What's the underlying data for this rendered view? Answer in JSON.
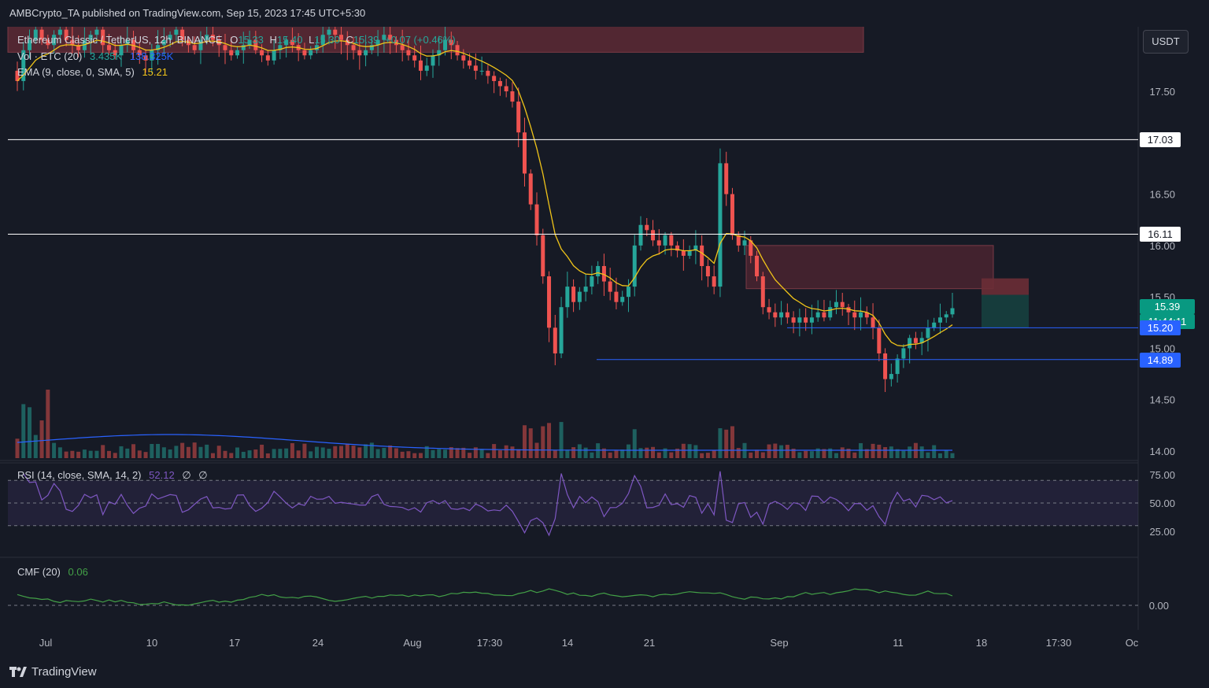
{
  "header": {
    "publisher_line": "AMBCrypto_TA published on TradingView.com, Sep 15, 2023 17:45 UTC+5:30"
  },
  "legend": {
    "symbol": "Ethereum Classic / TetherUS, 12h, BINANCE",
    "o_label": "O",
    "o_value": "15.33",
    "h_label": "H",
    "h_value": "15.40",
    "l_label": "L",
    "l_value": "15.30",
    "c_label": "C",
    "c_value": "15.39",
    "change": "+0.07 (+0.46%)",
    "vol_label": "Vol · ETC (20)",
    "vol_value": "3.435K",
    "vol_ma_value": "138.325K",
    "ema_label": "EMA (9, close, 0, SMA, 5)",
    "ema_value": "15.21",
    "rsi_label": "RSI (14, close, SMA, 14, 2)",
    "rsi_value": "52.12",
    "rsi_extra1": "∅",
    "rsi_extra2": "∅",
    "cmf_label": "CMF (20)",
    "cmf_value": "0.06"
  },
  "currency_button": "USDT",
  "price_axis": {
    "ticks": [
      "17.50",
      "16.50",
      "16.00",
      "15.50",
      "15.00",
      "14.50",
      "14.00"
    ],
    "labels": [
      {
        "text": "17.03",
        "style": "white"
      },
      {
        "text": "16.11",
        "style": "white"
      },
      {
        "text": "15.39",
        "style": "green"
      },
      {
        "text": "11:44:11",
        "style": "green"
      },
      {
        "text": "15.20",
        "style": "blue"
      },
      {
        "text": "14.89",
        "style": "blue"
      }
    ]
  },
  "rsi_axis": [
    "75.00",
    "50.00",
    "25.00"
  ],
  "cmf_axis": [
    "0.00"
  ],
  "time_axis": [
    "Jul",
    "10",
    "17",
    "24",
    "Aug",
    "17:30",
    "14",
    "21",
    "Sep",
    "11",
    "18",
    "17:30",
    "Oc"
  ],
  "footer": {
    "brand": "TradingView"
  },
  "colors": {
    "background": "#161a25",
    "up": "#26a69a",
    "down": "#ef5350",
    "ema": "#f0c419",
    "rsi": "#7e57c2",
    "cmf": "#43a047",
    "level_line": "#ffffff",
    "support_line": "#2962ff",
    "supply_zone": "#5d2a35"
  },
  "chart_data": {
    "type": "candlestick",
    "symbol": "Ethereum Classic / TetherUS",
    "timeframe": "12h",
    "exchange": "BINANCE",
    "ylim": [
      13.95,
      18.3
    ],
    "last": {
      "open": 15.33,
      "high": 15.4,
      "low": 15.3,
      "close": 15.39
    },
    "ema": 15.21,
    "horizontal_levels": [
      17.03,
      16.11,
      15.2,
      14.89
    ],
    "zones": [
      {
        "kind": "supply",
        "from": "Jun 29",
        "to": "Aug 24",
        "low": 17.9,
        "high": 18.2
      },
      {
        "kind": "supply",
        "from": "Aug 28",
        "to": "Sep 18",
        "low": 15.58,
        "high": 16.0
      },
      {
        "kind": "position-short",
        "from": "Sep 18",
        "to": "Sep 22",
        "low": 15.2,
        "high": 15.68,
        "entry": 15.52
      }
    ],
    "closes": [
      17.6,
      17.9,
      18.0,
      18.1,
      18.0,
      17.95,
      18.05,
      18.1,
      18.0,
      17.95,
      17.9,
      18.0,
      18.05,
      18.1,
      17.95,
      17.9,
      17.85,
      17.95,
      18.0,
      17.9,
      17.85,
      17.8,
      17.9,
      17.95,
      18.0,
      18.05,
      18.1,
      18.0,
      17.95,
      17.9,
      18.0,
      18.05,
      18.0,
      17.95,
      17.9,
      17.85,
      17.9,
      17.95,
      18.0,
      17.9,
      17.85,
      17.8,
      17.9,
      17.95,
      18.0,
      17.95,
      17.9,
      17.85,
      17.9,
      17.95,
      18.05,
      18.1,
      18.05,
      18.0,
      17.95,
      17.9,
      17.85,
      17.9,
      17.95,
      18.0,
      18.05,
      18.0,
      17.95,
      17.9,
      17.85,
      17.8,
      17.7,
      17.75,
      17.85,
      17.9,
      18.0,
      17.95,
      17.85,
      17.8,
      17.75,
      17.7,
      17.7,
      17.65,
      17.6,
      17.55,
      17.5,
      17.4,
      17.1,
      16.7,
      16.4,
      16.1,
      15.7,
      15.2,
      14.95,
      15.4,
      15.6,
      15.45,
      15.55,
      15.6,
      15.7,
      15.8,
      15.65,
      15.55,
      15.45,
      15.5,
      15.6,
      16.0,
      16.2,
      16.15,
      16.05,
      16.0,
      16.1,
      16.0,
      15.95,
      15.9,
      15.95,
      16.0,
      15.8,
      15.7,
      15.6,
      16.8,
      16.5,
      16.1,
      16.0,
      16.05,
      15.9,
      15.7,
      15.4,
      15.35,
      15.3,
      15.35,
      15.3,
      15.25,
      15.3,
      15.25,
      15.3,
      15.35,
      15.3,
      15.4,
      15.45,
      15.4,
      15.35,
      15.3,
      15.35,
      15.3,
      15.2,
      14.95,
      14.7,
      14.75,
      14.9,
      15.0,
      15.1,
      15.05,
      15.1,
      15.2,
      15.25,
      15.3,
      15.33,
      15.39
    ],
    "rsi": {
      "value": 52.12,
      "bands": [
        70,
        30
      ],
      "mid": 50,
      "axis_ticks": [
        75,
        50,
        25
      ]
    },
    "cmf": {
      "value": 0.06,
      "zero": 0
    },
    "volume": {
      "last": "3.435K",
      "ma": "138.325K",
      "ma_period": 20
    }
  }
}
